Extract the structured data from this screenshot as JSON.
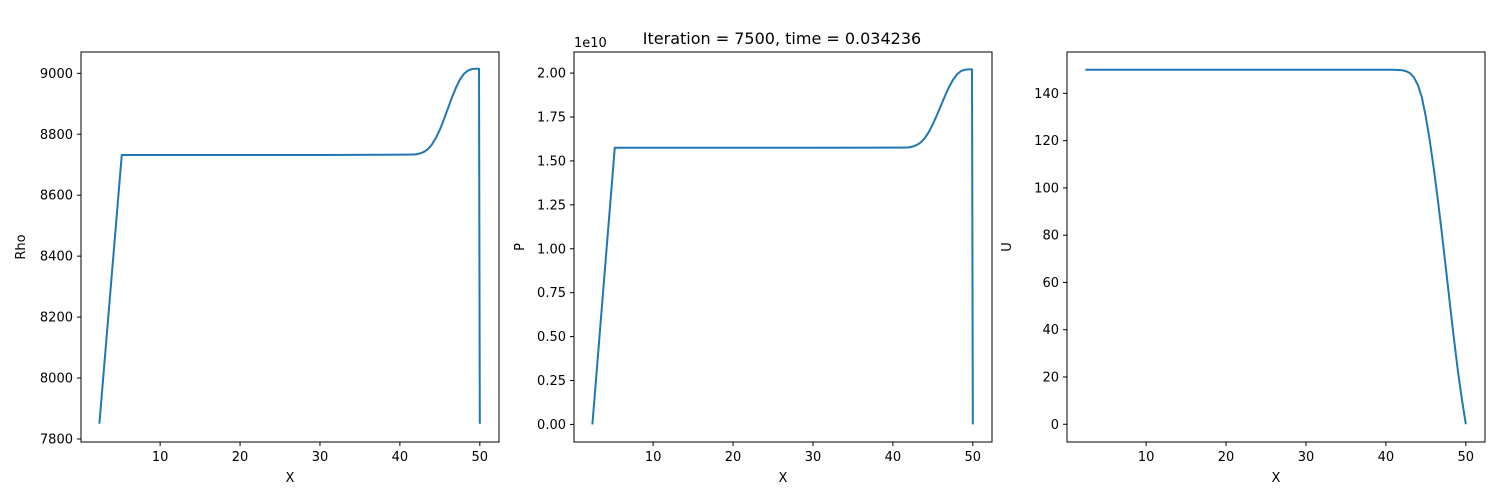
{
  "figure": {
    "title": "Iteration = 7500, time = 0.034236"
  },
  "colors": {
    "line": "#1f77b4",
    "background": "#ffffff",
    "axes": "#000000"
  },
  "chart_data": [
    {
      "type": "line",
      "xlabel": "X",
      "ylabel": "Rho",
      "offset_text": "",
      "xlim": [
        0.1,
        52.4
      ],
      "ylim": [
        7790,
        9070
      ],
      "xticks": [
        10,
        20,
        30,
        40,
        50
      ],
      "xtick_labels": [
        "10",
        "20",
        "30",
        "40",
        "50"
      ],
      "yticks": [
        7800,
        8000,
        8200,
        8400,
        8600,
        8800,
        9000
      ],
      "ytick_labels": [
        "7800",
        "8000",
        "8200",
        "8400",
        "8600",
        "8800",
        "9000"
      ],
      "grid": false,
      "series": [
        {
          "x": [
            2.4,
            5.2,
            10,
            20,
            30,
            40,
            41,
            42,
            42.5,
            43,
            43.5,
            44,
            44.5,
            45,
            45.5,
            46,
            46.5,
            47,
            47.5,
            48,
            48.5,
            49,
            49.5,
            49.9,
            49.95,
            50.0
          ],
          "values": [
            7850,
            8732,
            8732,
            8732,
            8732,
            8733,
            8733,
            8734,
            8737,
            8742,
            8751,
            8766,
            8788,
            8815,
            8848,
            8884,
            8920,
            8952,
            8979,
            8998,
            9009,
            9014,
            9015,
            9015,
            8400,
            7850
          ]
        }
      ]
    },
    {
      "type": "line",
      "xlabel": "X",
      "ylabel": "P",
      "offset_text": "1e10",
      "xlim": [
        0.1,
        52.4
      ],
      "ylim": [
        -0.1,
        2.12
      ],
      "xticks": [
        10,
        20,
        30,
        40,
        50
      ],
      "xtick_labels": [
        "10",
        "20",
        "30",
        "40",
        "50"
      ],
      "yticks": [
        0,
        0.25,
        0.5,
        0.75,
        1.0,
        1.25,
        1.5,
        1.75,
        2.0
      ],
      "ytick_labels": [
        "0.00",
        "0.25",
        "0.50",
        "0.75",
        "1.00",
        "1.25",
        "1.50",
        "1.75",
        "2.00"
      ],
      "grid": false,
      "series": [
        {
          "x": [
            2.4,
            5.2,
            10,
            20,
            30,
            40,
            41,
            42,
            42.5,
            43,
            43.5,
            44,
            44.5,
            45,
            45.5,
            46,
            46.5,
            47,
            47.5,
            48,
            48.5,
            49,
            49.5,
            49.9,
            49.95,
            50.0
          ],
          "values": [
            0.0,
            1.575,
            1.575,
            1.575,
            1.575,
            1.576,
            1.576,
            1.577,
            1.582,
            1.591,
            1.606,
            1.63,
            1.665,
            1.709,
            1.76,
            1.814,
            1.868,
            1.918,
            1.96,
            1.992,
            2.011,
            2.019,
            2.021,
            2.021,
            1.0,
            0.0
          ]
        }
      ]
    },
    {
      "type": "line",
      "xlabel": "X",
      "ylabel": "U",
      "offset_text": "",
      "xlim": [
        0.1,
        52.4
      ],
      "ylim": [
        -7.5,
        157.5
      ],
      "xticks": [
        10,
        20,
        30,
        40,
        50
      ],
      "xtick_labels": [
        "10",
        "20",
        "30",
        "40",
        "50"
      ],
      "yticks": [
        0,
        20,
        40,
        60,
        80,
        100,
        120,
        140
      ],
      "ytick_labels": [
        "0",
        "20",
        "40",
        "60",
        "80",
        "100",
        "120",
        "140"
      ],
      "grid": false,
      "series": [
        {
          "x": [
            2.4,
            10,
            20,
            30,
            40,
            41,
            41.5,
            42,
            42.5,
            43,
            43.5,
            44,
            44.5,
            45,
            45.5,
            46,
            46.5,
            47,
            47.5,
            48,
            48.5,
            49,
            49.5,
            50.0
          ],
          "values": [
            150,
            150,
            150,
            150,
            150,
            150,
            149.9,
            149.8,
            149.4,
            148.6,
            146.8,
            143.6,
            138.3,
            130.0,
            119.8,
            108.0,
            94.9,
            80.9,
            66.2,
            51.2,
            36.6,
            22.8,
            10.8,
            0
          ]
        }
      ]
    }
  ]
}
